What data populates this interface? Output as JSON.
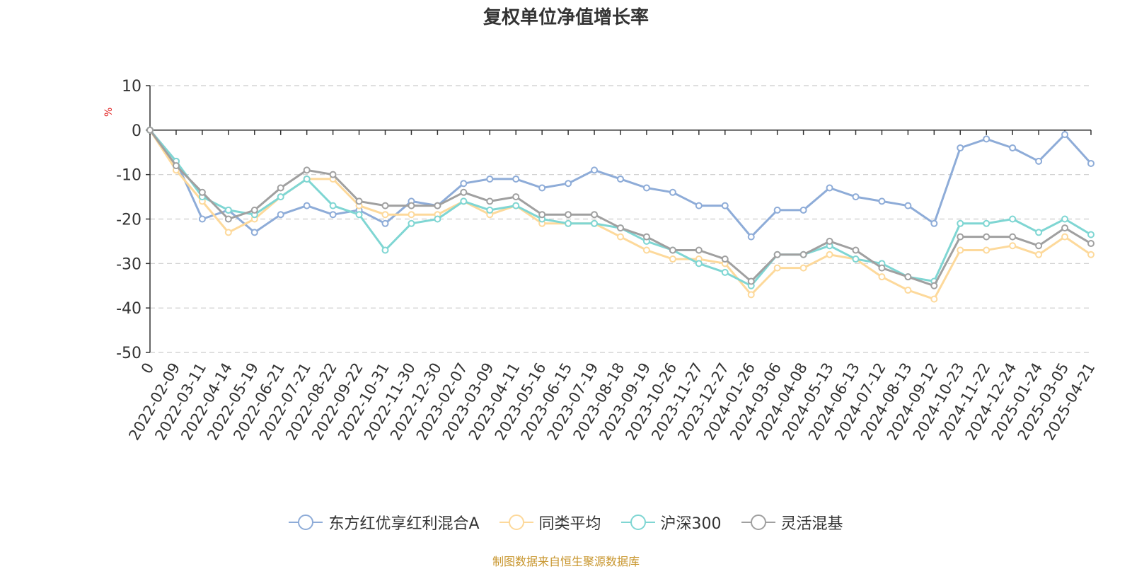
{
  "chart_data": {
    "type": "line",
    "title": "复权单位净值增长率",
    "ylabel": "%",
    "ylim": [
      -50,
      10
    ],
    "yticks": [
      10,
      0,
      -10,
      -20,
      -30,
      -40,
      -50
    ],
    "x_tick_labels": [
      "0",
      "2022-02-09",
      "2022-03-11",
      "2022-04-14",
      "2022-05-19",
      "2022-06-21",
      "2022-07-21",
      "2022-08-22",
      "2022-09-22",
      "2022-10-31",
      "2022-11-30",
      "2022-12-30",
      "2023-02-07",
      "2023-03-09",
      "2023-04-11",
      "2023-05-16",
      "2023-06-15",
      "2023-07-19",
      "2023-08-18",
      "2023-09-19",
      "2023-10-26",
      "2023-11-27",
      "2023-12-27",
      "2024-01-26",
      "2024-03-06",
      "2024-04-08",
      "2024-05-13",
      "2024-06-13",
      "2024-07-12",
      "2024-08-13",
      "2024-09-12",
      "2024-10-23",
      "2024-11-22",
      "2024-12-24",
      "2025-01-24",
      "2025-03-05",
      "2025-04-21"
    ],
    "x": [
      "0",
      "2022-02-09",
      "2022-03-11",
      "2022-04-14",
      "2022-05-19",
      "2022-06-21",
      "2022-07-21",
      "2022-08-22",
      "2022-09-22",
      "2022-10-31",
      "2022-11-30",
      "2022-12-30",
      "2023-02-07",
      "2023-03-09",
      "2023-04-11",
      "2023-05-16",
      "2023-06-15",
      "2023-07-19",
      "2023-08-18",
      "2023-09-19",
      "2023-10-26",
      "2023-11-27",
      "2023-12-27",
      "2024-01-26",
      "2024-03-06",
      "2024-04-08",
      "2024-05-13",
      "2024-06-13",
      "2024-07-12",
      "2024-08-13",
      "2024-09-12",
      "2024-10-23",
      "2024-11-22",
      "2024-12-24",
      "2025-01-24",
      "2025-03-05",
      "2025-04-21"
    ],
    "series": [
      {
        "name": "东方红优享红利混合A",
        "color": "#8eacd8",
        "values": [
          0,
          -7,
          -20,
          -18,
          -23,
          -19,
          -17,
          -19,
          -18,
          -21,
          -16,
          -17,
          -12,
          -11,
          -11,
          -13,
          -12,
          -9,
          -11,
          -13,
          -14,
          -17,
          -17,
          -24,
          -18,
          -18,
          -13,
          -15,
          -16,
          -17,
          -21,
          -4,
          -2,
          -4,
          -7,
          -1,
          -7.5
        ]
      },
      {
        "name": "同类平均",
        "color": "#fdd99b",
        "values": [
          0,
          -9,
          -16,
          -23,
          -20,
          -15,
          -11,
          -11,
          -17,
          -19,
          -19,
          -19,
          -16,
          -19,
          -17,
          -21,
          -21,
          -21,
          -24,
          -27,
          -29,
          -29,
          -30,
          -37,
          -31,
          -31,
          -28,
          -29,
          -33,
          -36,
          -38,
          -27,
          -27,
          -26,
          -28,
          -24,
          -28
        ]
      },
      {
        "name": "沪深300",
        "color": "#7fd6d3",
        "values": [
          0,
          -7,
          -15,
          -18,
          -19,
          -15,
          -11,
          -17,
          -19,
          -27,
          -21,
          -20,
          -16,
          -18,
          -17,
          -20,
          -21,
          -21,
          -22,
          -25,
          -27,
          -30,
          -32,
          -35,
          -28,
          -28,
          -26,
          -29,
          -30,
          -33,
          -34,
          -21,
          -21,
          -20,
          -23,
          -20,
          -23.5
        ]
      },
      {
        "name": "灵活混基",
        "color": "#a0a0a0",
        "values": [
          0,
          -8,
          -14,
          -20,
          -18,
          -13,
          -9,
          -10,
          -16,
          -17,
          -17,
          -17,
          -14,
          -16,
          -15,
          -19,
          -19,
          -19,
          -22,
          -24,
          -27,
          -27,
          -29,
          -34,
          -28,
          -28,
          -25,
          -27,
          -31,
          -33,
          -35,
          -24,
          -24,
          -24,
          -26,
          -22,
          -25.5
        ]
      }
    ]
  },
  "legend": {
    "items": [
      "东方红优享红利混合A",
      "同类平均",
      "沪深300",
      "灵活混基"
    ]
  },
  "source": "制图数据来自恒生聚源数据库"
}
